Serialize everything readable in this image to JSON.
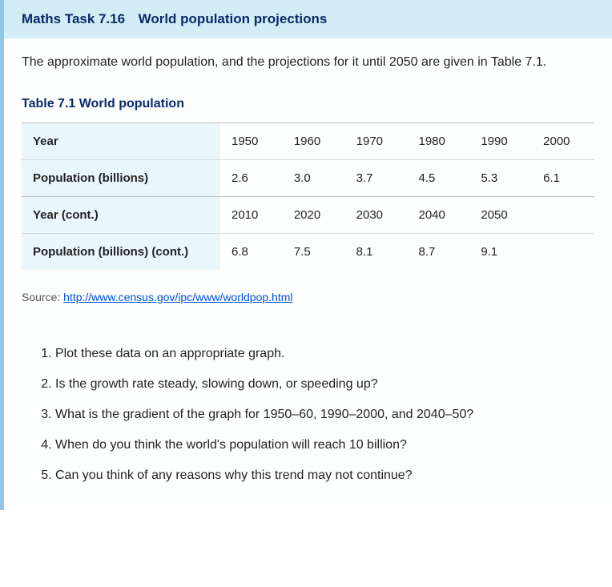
{
  "header": {
    "task_no": "Maths Task 7.16",
    "title": "World population projections"
  },
  "intro_text": "The approximate world population, and the projections for it until 2050 are given in Table 7.1.",
  "table": {
    "title": "Table 7.1 World population",
    "header_bg": "#e9f6fb",
    "border_color": "#d8d8d8",
    "row1_label": "Year",
    "row1_cells": [
      "1950",
      "1960",
      "1970",
      "1980",
      "1990",
      "2000"
    ],
    "row2_label": "Population (billions)",
    "row2_cells": [
      "2.6",
      "3.0",
      "3.7",
      "4.5",
      "5.3",
      "6.1"
    ],
    "row3_label": "Year (cont.)",
    "row3_cells": [
      "2010",
      "2020",
      "2030",
      "2040",
      "2050",
      ""
    ],
    "row4_label": "Population (billions) (cont.)",
    "row4_cells": [
      "6.8",
      "7.5",
      "8.1",
      "8.7",
      "9.1",
      ""
    ]
  },
  "source": {
    "prefix": "Source: ",
    "link_text": "http://www.census.gov/ipc/www/worldpop.html"
  },
  "questions": [
    "Plot these data on an appropriate graph.",
    "Is the growth rate steady, slowing down, or speeding up?",
    "What is the gradient of the graph for 1950–60, 1990–2000, and 2040–50?",
    "When do you think the world's population will reach 10 billion?",
    "Can you think of any reasons why this trend may not continue?"
  ]
}
